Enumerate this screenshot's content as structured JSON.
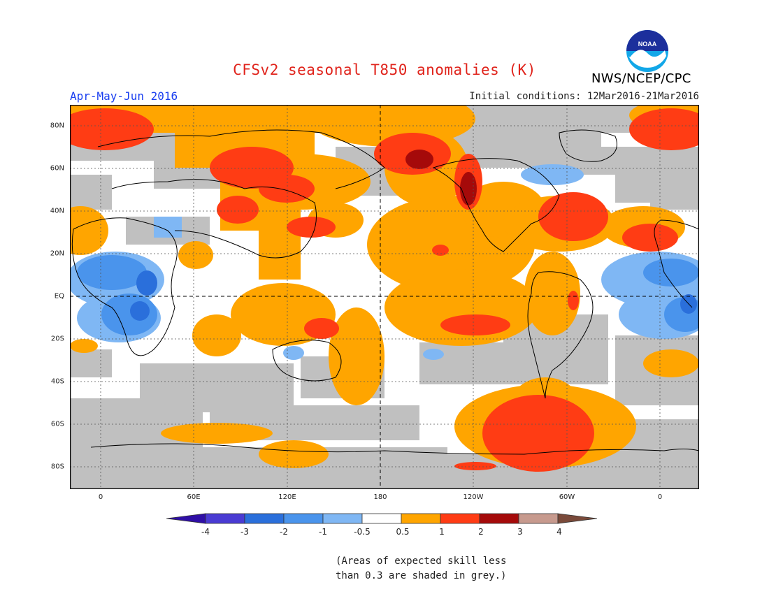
{
  "header": {
    "title": "CFSv2 seasonal T850 anomalies (K)",
    "period": "Apr-May-Jun 2016",
    "initial_conditions": "Initial conditions: 12Mar2016-21Mar2016",
    "agency": "NWS/NCEP/CPC",
    "logo_text": "NOAA"
  },
  "map": {
    "latitude_labels": [
      "80N",
      "60N",
      "40N",
      "20N",
      "EQ",
      "20S",
      "40S",
      "60S",
      "80S"
    ],
    "longitude_labels": [
      "0",
      "60E",
      "120E",
      "180",
      "120W",
      "60W",
      "0"
    ]
  },
  "colorbar": {
    "ticks": [
      "-4",
      "-3",
      "-2",
      "-1",
      "-0.5",
      "0.5",
      "1",
      "2",
      "3",
      "4"
    ],
    "colors": [
      "#2f0fa6",
      "#4a3bd3",
      "#2a6fdb",
      "#4a94ec",
      "#7fb7f4",
      "#ffffff",
      "#ffa500",
      "#ff3c14",
      "#a50a0a",
      "#c79a8e",
      "#7a4a3a"
    ]
  },
  "note": {
    "line1": "(Areas of expected skill less",
    "line2": "than 0.3 are shaded in grey.)"
  }
}
